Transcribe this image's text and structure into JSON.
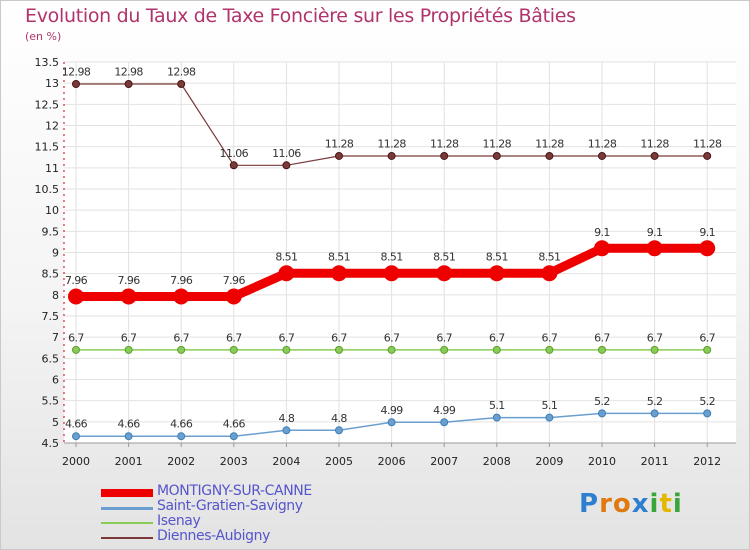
{
  "title": "Evolution du Taux de Taxe Foncière sur les Propriétés Bâties",
  "subtitle": "(en %)",
  "logo": "Proxiti",
  "chart_data": {
    "type": "line",
    "title": "Evolution du Taux de Taxe Foncière sur les Propriétés Bâties",
    "ylabel": "(en %)",
    "xlabel": "",
    "ylim": [
      4.5,
      13.5
    ],
    "yticks": [
      4.5,
      5,
      5.5,
      6,
      6.5,
      7,
      7.5,
      8,
      8.5,
      9,
      9.5,
      10,
      10.5,
      11,
      11.5,
      12,
      12.5,
      13,
      13.5
    ],
    "ytick_labels": [
      "4.5",
      "5",
      "5.5",
      "6",
      "6.5",
      "7",
      "7.5",
      "8",
      "8.5",
      "9",
      "9.5",
      "10",
      "10.5",
      "11",
      "11.5",
      "12",
      "12.5",
      "13",
      "13.5"
    ],
    "x": [
      "2000",
      "2001",
      "2002",
      "2003",
      "2004",
      "2005",
      "2006",
      "2007",
      "2008",
      "2009",
      "2010",
      "2011",
      "2012"
    ],
    "legend_position": "bottom-left",
    "series": [
      {
        "name": "MONTIGNY-SUR-CANNE",
        "color": "#ee0000",
        "values": [
          7.96,
          7.96,
          7.96,
          7.96,
          8.51,
          8.51,
          8.51,
          8.51,
          8.51,
          8.51,
          9.1,
          9.1,
          9.1
        ],
        "labels": [
          "7.96",
          "7.96",
          "7.96",
          "7.96",
          "8.51",
          "8.51",
          "8.51",
          "8.51",
          "8.51",
          "8.51",
          "9.1",
          "9.1",
          "9.1"
        ]
      },
      {
        "name": "Saint-Gratien-Savigny",
        "color": "#6a9fcf",
        "values": [
          4.66,
          4.66,
          4.66,
          4.66,
          4.8,
          4.8,
          4.99,
          4.99,
          5.1,
          5.1,
          5.2,
          5.2,
          5.2
        ],
        "labels": [
          "4.66",
          "4.66",
          "4.66",
          "4.66",
          "4.8",
          "4.8",
          "4.99",
          "4.99",
          "5.1",
          "5.1",
          "5.2",
          "5.2",
          "5.2"
        ]
      },
      {
        "name": "Isenay",
        "color": "#88cc55",
        "values": [
          6.7,
          6.7,
          6.7,
          6.7,
          6.7,
          6.7,
          6.7,
          6.7,
          6.7,
          6.7,
          6.7,
          6.7,
          6.7
        ],
        "labels": [
          "6.7",
          "6.7",
          "6.7",
          "6.7",
          "6.7",
          "6.7",
          "6.7",
          "6.7",
          "6.7",
          "6.7",
          "6.7",
          "6.7",
          "6.7"
        ]
      },
      {
        "name": "Diennes-Aubigny",
        "color": "#7a3a3a",
        "values": [
          12.98,
          12.98,
          12.98,
          11.06,
          11.06,
          11.28,
          11.28,
          11.28,
          11.28,
          11.28,
          11.28,
          11.28,
          11.28
        ],
        "labels": [
          "12.98",
          "12.98",
          "12.98",
          "11.06",
          "11.06",
          "11.28",
          "11.28",
          "11.28",
          "11.28",
          "11.28",
          "11.28",
          "11.28",
          "11.28"
        ]
      }
    ]
  }
}
